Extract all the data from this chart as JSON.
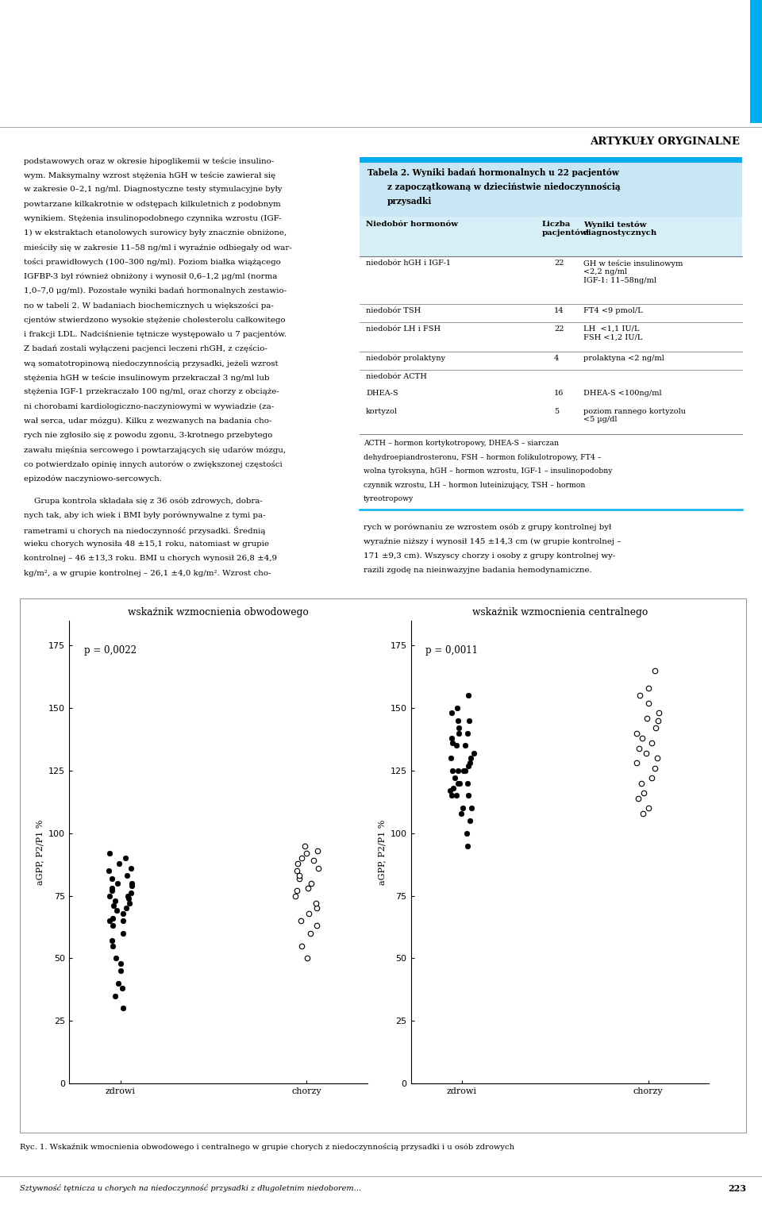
{
  "page_title": "ARTYKUŁY ORYGINALNE",
  "cyan_bar_color": "#00AEEF",
  "table_header_bg": "#D6EEF8",
  "table_title_bg": "#C5E3F5",
  "left_text_lines": [
    "podstawowych oraz w okresie hipoglikemii w teście insulino-",
    "wym. Maksymalny wzrost stężenia hGH w teście zawierał się",
    "w zakresie 0–2,1 ng/ml. Diagnostyczne testy stymulacyjne były",
    "powtarzane kilkakrotnie w odstępach kilkuletnich z podobnym",
    "wynikiem. Stężenia insulinopodobnego czynnika wzrostu (IGF-",
    "1) w ekstraktach etanolowych surowicy były znacznie obniżone,",
    "mieściły się w zakresie 11–58 ng/ml i wyraźnie odbiegały od war-",
    "tości prawidłowych (100–300 ng/ml). Poziom białka wiążącego",
    "IGFBP-3 był również obniżony i wynosił 0,6–1,2 μg/ml (norma",
    "1,0–7,0 μg/ml). Pozostałe wyniki badań hormonalnych zestawio-",
    "no w tabeli 2. W badaniach biochemicznych u większości pa-",
    "cjentów stwierdzono wysokie stężenie cholesterolu całkowitego",
    "i frakcji LDL. Nadciśnienie tętnicze występowało u 7 pacjentów.",
    "Z badań zostali wyłączeni pacjenci leczeni rhGH, z częścio-",
    "wą somatotropinową niedoczynnością przysadki, jeżeli wzrost",
    "stężenia hGH w teście insulinowym przekraczał 3 ng/ml lub",
    "stężenia IGF-1 przekraczało 100 ng/ml, oraz chorzy z obciąże-",
    "ni chorobami kardiologiczno-naczyniowymi w wywiadzie (za-",
    "wał serca, udar mózgu). Kilku z wezwanych na badania cho-",
    "rych nie zgłosiło się z powodu zgonu, 3-krotnego przebytego",
    "zawału mięśnia sercowego i powtarzających się udarów mózgu,",
    "co potwierdzało opinię innych autorów o zwiększonej częstości",
    "epizodów naczyniowo-sercowych."
  ],
  "left_text2": [
    "    Grupa kontrola składała się z 36 osób zdrowych, dobra-",
    "nych tak, aby ich wiek i BMI były porównywalne z tymi pa-",
    "rametrami u chorych na niedoczynność przysadki. Średnią",
    "wieku chorych wynosiła 48 ±15,1 roku, natomiast w grupie",
    "kontrolnej – 46 ±13,3 roku. BMI u chorych wynosił 26,8 ±4,9",
    "kg/m², a w grupie kontrolnej – 26,1 ±4,0 kg/m². Wzrost cho-"
  ],
  "right_text2": [
    "rych w porównaniu ze wzrostem osób z grupy kontrolnej był",
    "wyraźnie niższy i wynosił 145 ±14,3 cm (w grupie kontrolnej –",
    "171 ±9,3 cm). Wszyscy chorzy i osoby z grupy kontrolnej wy-",
    "razili zgodę na nieinwazyjne badania hemodynamiczne."
  ],
  "plot1_title": "wskaźnik wzmocnienia obwodowego",
  "plot2_title": "wskaźnik wzmocnienia centralnego",
  "plot1_pval": "p = 0,0022",
  "plot2_pval": "p = 0,0011",
  "ylabel": "aGPP, P2/P1 %",
  "xlabel_zdrowi": "zdrowi",
  "xlabel_chorzy": "chorzy",
  "yticks": [
    0,
    25,
    50,
    75,
    100,
    125,
    150,
    175
  ],
  "plot1_zdrowi": [
    80,
    76,
    70,
    65,
    78,
    82,
    75,
    72,
    68,
    90,
    85,
    79,
    74,
    71,
    66,
    63,
    50,
    45,
    40,
    35,
    30,
    77,
    73,
    69,
    88,
    83,
    55,
    48,
    38,
    65,
    60,
    57,
    92,
    86,
    80,
    75
  ],
  "plot1_chorzy": [
    90,
    85,
    80,
    95,
    88,
    92,
    75,
    70,
    65,
    60,
    55,
    50,
    78,
    82,
    86,
    89,
    93,
    72,
    68,
    63,
    77,
    83
  ],
  "plot2_zdrowi": [
    130,
    125,
    120,
    135,
    128,
    140,
    115,
    110,
    118,
    145,
    138,
    132,
    127,
    122,
    117,
    105,
    100,
    95,
    155,
    148,
    142,
    136,
    130,
    125,
    120,
    115,
    150,
    145,
    140,
    135,
    110,
    108,
    125,
    120,
    115,
    125
  ],
  "plot2_chorzy": [
    165,
    158,
    152,
    146,
    140,
    134,
    128,
    122,
    116,
    110,
    145,
    138,
    132,
    126,
    120,
    114,
    108,
    155,
    148,
    142,
    136,
    130
  ],
  "figure_caption_bold": "Ryc. 1.",
  "figure_caption_normal": " Wskaźnik wmocnienia obwodowego ",
  "figure_caption_italic": "i",
  "figure_caption_rest": " centralnego w grupie chorych z niedoczynnością przysadki i u osób zdrowych",
  "footer_text": "Sztywność tętnicza u chorych na niedoczynność przysadki z długoletnim niedoborem...",
  "footer_page": "223",
  "table_footnote": "ACTH – hormon kortykotropowy, DHEA-S – siarczan\ndehydroepiandrosteronu, FSH – hormon folikulotropowy, FT4 –\nwolna tyroksyna, hGH – hormon wzrostu, IGF-1 – insulinopodobny\nczynnik wzrostu, LH – hormon luteinizujący, TSH – hormon\ntyreotropowy"
}
